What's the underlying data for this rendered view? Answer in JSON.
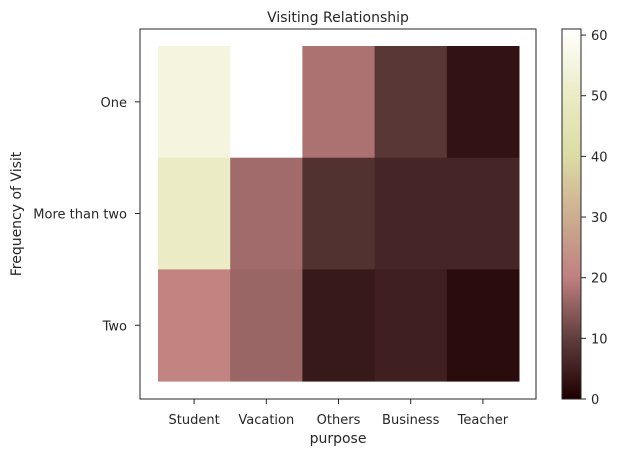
{
  "chart_data": {
    "type": "heatmap",
    "title": "Visiting Relationship",
    "xlabel": "purpose",
    "ylabel": "Frequency of Visit",
    "x_categories": [
      "Student",
      "Vacation",
      "Others",
      "Business",
      "Teacher"
    ],
    "y_categories": [
      "One",
      "More than two",
      "Two"
    ],
    "values": [
      [
        55,
        61,
        18,
        9,
        3
      ],
      [
        50,
        17,
        8,
        6,
        6
      ],
      [
        21,
        16,
        4,
        5,
        2
      ]
    ],
    "colorbar": {
      "min": 0,
      "max": 61,
      "ticks": [
        0,
        10,
        20,
        30,
        40,
        50,
        60
      ],
      "colormap": "pink"
    },
    "grid": false
  }
}
